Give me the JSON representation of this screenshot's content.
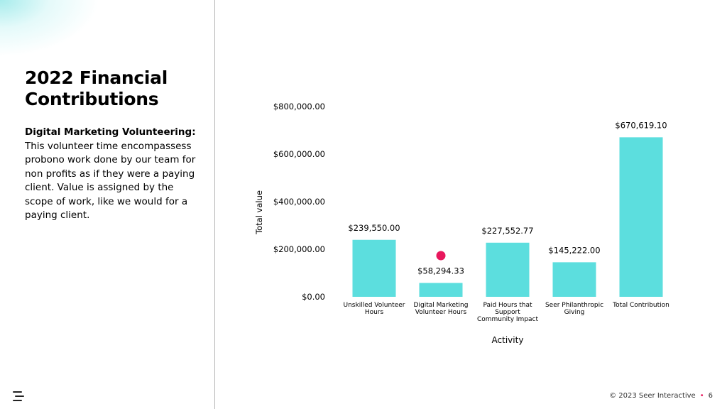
{
  "slide": {
    "title": "2022 Financial Contributions",
    "body_lead": "Digital Marketing Volunteering:",
    "body_text": "This volunteer time encompassess probono work done by our team for non profits as if they were a paying client. Value is assigned by the scope of work, like we would for a paying client.",
    "footer_copyright": "© 2023 Seer Interactive",
    "page_number": "6"
  },
  "colors": {
    "bar": "#5cdede",
    "marker": "#e8175d",
    "accent_glow": "#5fdcdc"
  },
  "icons": [
    "seer-logo-icon"
  ],
  "chart_data": {
    "type": "bar",
    "xlabel": "Activity",
    "ylabel": "Total value",
    "ylim": [
      0,
      800000
    ],
    "yticks": [
      0,
      200000,
      400000,
      600000,
      800000
    ],
    "ytick_labels": [
      "$0.00",
      "$200,000.00",
      "$400,000.00",
      "$600,000.00",
      "$800,000.00"
    ],
    "categories": [
      [
        "Unskilled Volunteer",
        "Hours"
      ],
      [
        "Digital Marketing",
        "Volunteer Hours"
      ],
      [
        "Paid Hours that",
        "Support",
        "Community Impact"
      ],
      [
        "Seer Philanthropic",
        "Giving"
      ],
      [
        "Total Contribution"
      ]
    ],
    "values": [
      239550.0,
      58294.33,
      227552.77,
      145222.0,
      670619.1
    ],
    "data_labels": [
      "$239,550.00",
      "$58,294.33",
      "$227,552.77",
      "$145,222.00",
      "$670,619.10"
    ],
    "highlight_marker_category_index": 1,
    "grid": false,
    "legend": "none"
  }
}
